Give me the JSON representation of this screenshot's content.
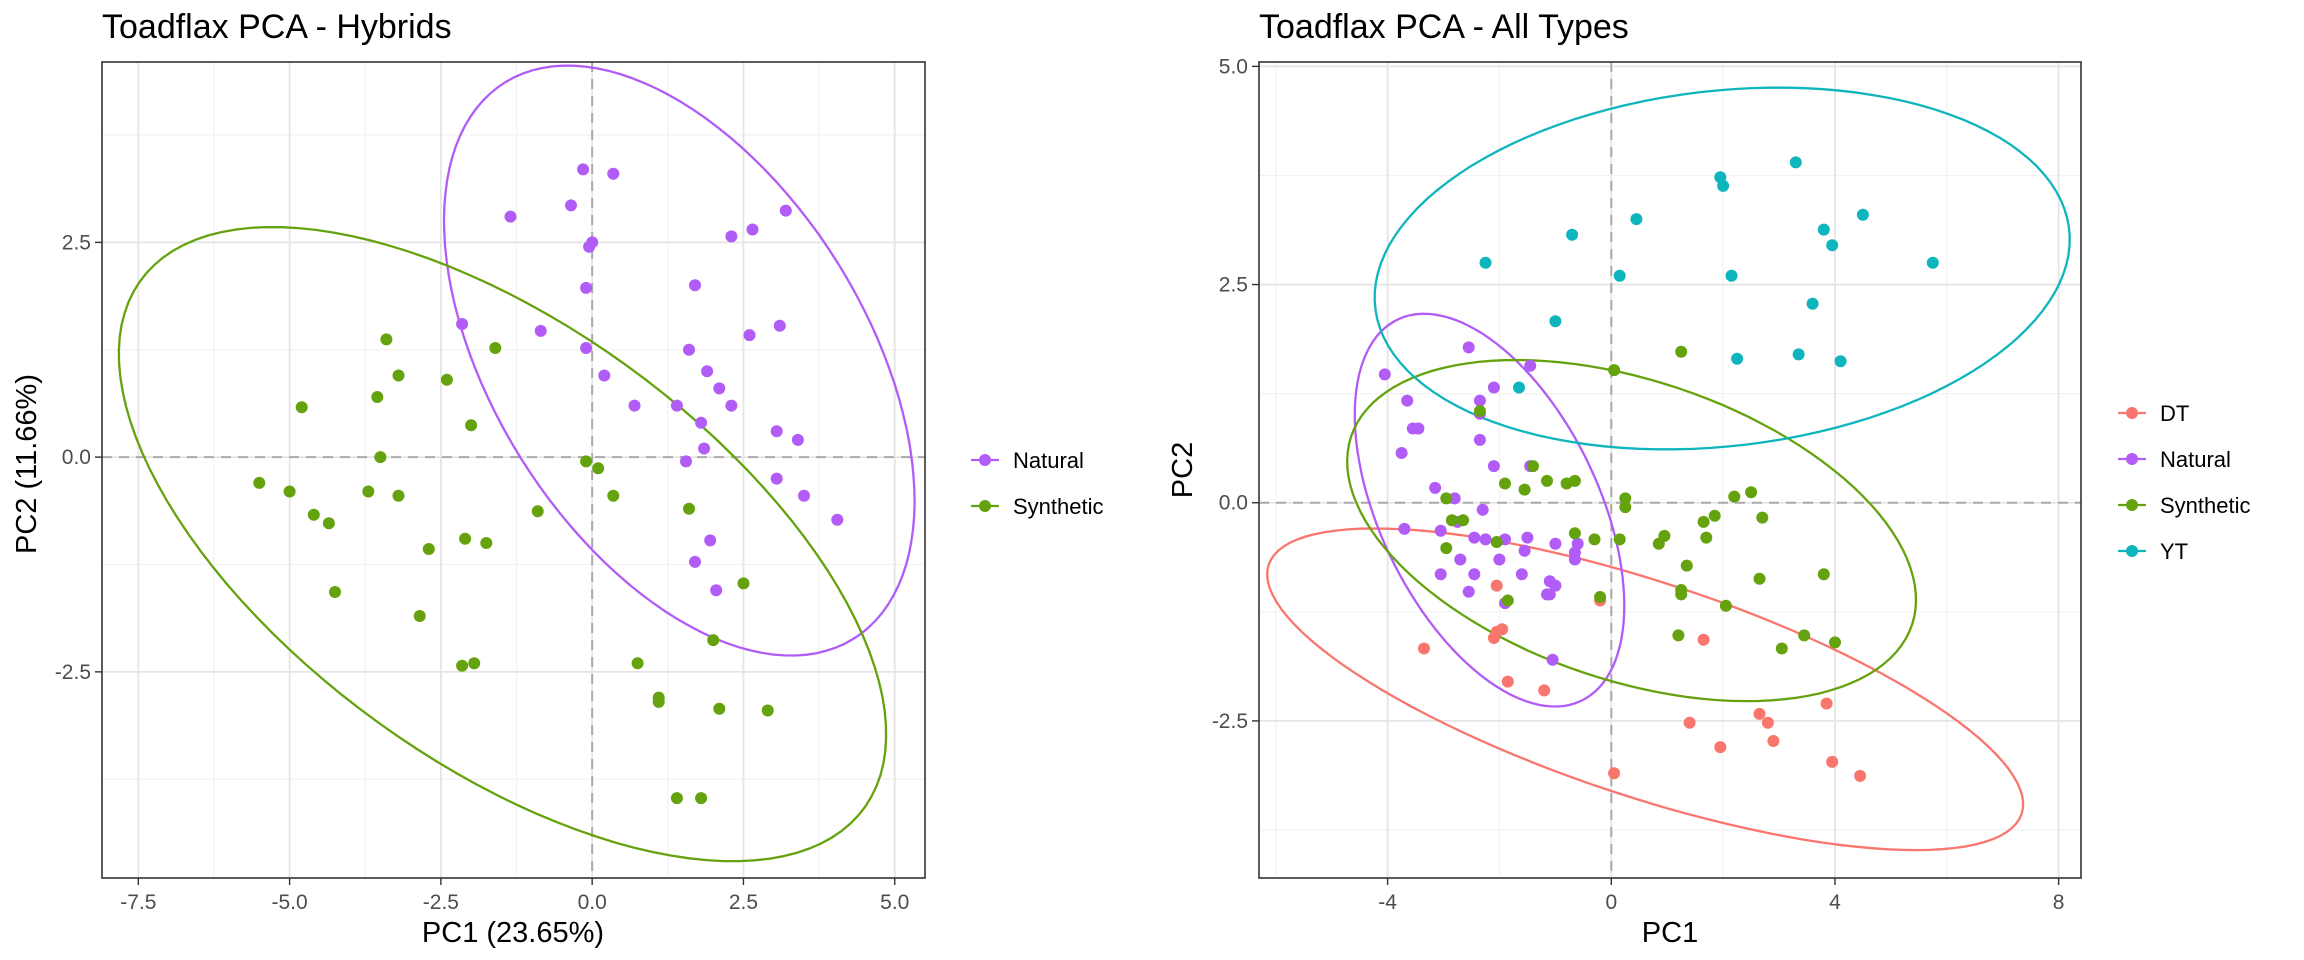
{
  "colors": {
    "DT": "#F8766D",
    "Natural": "#B15CF7",
    "Synthetic": "#64A20E",
    "YT": "#0FB5BC",
    "grid_major": "#E5E5E5",
    "grid_minor": "#F2F2F2",
    "panel_border": "#333333",
    "zero_line": "#AAAAAA"
  },
  "chart_data": [
    {
      "type": "scatter",
      "title": "Toadflax PCA - Hybrids",
      "xlabel": "PC1 (23.65%)",
      "ylabel": "PC2 (11.66%)",
      "xlim": [
        -8.1,
        5.5
      ],
      "ylim": [
        -4.9,
        4.6
      ],
      "xticks": [
        -7.5,
        -5.0,
        -2.5,
        0.0,
        2.5,
        5.0
      ],
      "xtick_labels": [
        "-7.5",
        "-5.0",
        "-2.5",
        "0.0",
        "2.5",
        "5.0"
      ],
      "yticks": [
        -2.5,
        0.0,
        2.5
      ],
      "ytick_labels": [
        "-2.5",
        "0.0",
        "2.5"
      ],
      "grid": true,
      "reference_lines": {
        "x": 0,
        "y": 0
      },
      "legend_position": "right",
      "legend": [
        "Natural",
        "Synthetic"
      ],
      "series": [
        {
          "name": "Natural",
          "ellipse": true,
          "points": [
            [
              -0.15,
              3.35
            ],
            [
              0.35,
              3.3
            ],
            [
              -0.35,
              2.93
            ],
            [
              3.2,
              2.87
            ],
            [
              -1.35,
              2.8
            ],
            [
              0,
              2.5
            ],
            [
              -0.05,
              2.45
            ],
            [
              2.65,
              2.65
            ],
            [
              2.3,
              2.57
            ],
            [
              -0.1,
              1.97
            ],
            [
              1.7,
              2.0
            ],
            [
              3.1,
              1.53
            ],
            [
              -2.15,
              1.55
            ],
            [
              -0.85,
              1.47
            ],
            [
              2.6,
              1.42
            ],
            [
              1.6,
              1.25
            ],
            [
              -0.1,
              1.27
            ],
            [
              1.9,
              1.0
            ],
            [
              0.2,
              0.95
            ],
            [
              2.1,
              0.8
            ],
            [
              0.7,
              0.6
            ],
            [
              1.4,
              0.6
            ],
            [
              2.3,
              0.6
            ],
            [
              1.8,
              0.4
            ],
            [
              3.05,
              0.3
            ],
            [
              3.4,
              0.2
            ],
            [
              1.85,
              0.1
            ],
            [
              1.55,
              -0.05
            ],
            [
              3.05,
              -0.25
            ],
            [
              3.5,
              -0.45
            ],
            [
              4.05,
              -0.73
            ],
            [
              1.95,
              -0.97
            ],
            [
              1.7,
              -1.22
            ],
            [
              2.05,
              -1.55
            ]
          ]
        },
        {
          "name": "Synthetic",
          "ellipse": true,
          "points": [
            [
              -3.4,
              1.37
            ],
            [
              -3.2,
              0.95
            ],
            [
              -2.4,
              0.9
            ],
            [
              -3.55,
              0.7
            ],
            [
              -1.6,
              1.27
            ],
            [
              -4.8,
              0.58
            ],
            [
              -2.0,
              0.37
            ],
            [
              -3.5,
              0.0
            ],
            [
              -0.1,
              -0.05
            ],
            [
              0.1,
              -0.13
            ],
            [
              -5.5,
              -0.3
            ],
            [
              -5.0,
              -0.4
            ],
            [
              -3.7,
              -0.4
            ],
            [
              -3.2,
              -0.45
            ],
            [
              0.35,
              -0.45
            ],
            [
              1.6,
              -0.6
            ],
            [
              -4.6,
              -0.67
            ],
            [
              -0.9,
              -0.63
            ],
            [
              -4.35,
              -0.77
            ],
            [
              -2.1,
              -0.95
            ],
            [
              -1.75,
              -1.0
            ],
            [
              -2.7,
              -1.07
            ],
            [
              2.5,
              -1.47
            ],
            [
              -4.25,
              -1.57
            ],
            [
              -2.85,
              -1.85
            ],
            [
              2.0,
              -2.13
            ],
            [
              0.75,
              -2.4
            ],
            [
              -1.95,
              -2.4
            ],
            [
              -2.15,
              -2.43
            ],
            [
              1.1,
              -2.8
            ],
            [
              1.1,
              -2.85
            ],
            [
              2.1,
              -2.93
            ],
            [
              2.9,
              -2.95
            ],
            [
              1.4,
              -3.97
            ],
            [
              1.8,
              -3.97
            ]
          ]
        }
      ]
    },
    {
      "type": "scatter",
      "title": "Toadflax PCA - All Types",
      "xlabel": "PC1",
      "ylabel": "PC2",
      "xlim": [
        -6.3,
        8.4
      ],
      "ylim": [
        -4.3,
        5.05
      ],
      "xticks": [
        -4,
        0,
        4,
        8
      ],
      "xtick_labels": [
        "-4",
        "0",
        "4",
        "8"
      ],
      "yticks": [
        -2.5,
        0.0,
        2.5,
        5.0
      ],
      "ytick_labels": [
        "-2.5",
        "0.0",
        "2.5",
        "5.0"
      ],
      "grid": true,
      "reference_lines": {
        "x": 0,
        "y": 0
      },
      "legend_position": "right",
      "legend": [
        "DT",
        "Natural",
        "Synthetic",
        "YT"
      ],
      "series": [
        {
          "name": "DT",
          "ellipse": true,
          "points": [
            [
              -2.05,
              -0.95
            ],
            [
              -0.2,
              -1.12
            ],
            [
              -2.05,
              -1.48
            ],
            [
              -1.95,
              -1.45
            ],
            [
              -2.1,
              -1.55
            ],
            [
              1.65,
              -1.57
            ],
            [
              -3.35,
              -1.67
            ],
            [
              -1.85,
              -2.05
            ],
            [
              -1.2,
              -2.15
            ],
            [
              3.85,
              -2.3
            ],
            [
              2.65,
              -2.42
            ],
            [
              1.4,
              -2.52
            ],
            [
              2.8,
              -2.52
            ],
            [
              2.9,
              -2.73
            ],
            [
              1.95,
              -2.8
            ],
            [
              3.95,
              -2.97
            ],
            [
              4.45,
              -3.13
            ],
            [
              0.05,
              -3.1
            ]
          ]
        },
        {
          "name": "Natural",
          "ellipse": true,
          "points": [
            [
              -4.05,
              1.47
            ],
            [
              -2.55,
              1.78
            ],
            [
              -1.45,
              1.57
            ],
            [
              -2.1,
              1.32
            ],
            [
              -3.65,
              1.17
            ],
            [
              -3.45,
              0.85
            ],
            [
              -3.55,
              0.85
            ],
            [
              -2.35,
              1.17
            ],
            [
              -2.35,
              1.02
            ],
            [
              -3.75,
              0.57
            ],
            [
              -2.35,
              0.72
            ],
            [
              -2.1,
              0.42
            ],
            [
              -1.45,
              0.42
            ],
            [
              -3.15,
              0.17
            ],
            [
              -2.8,
              0.05
            ],
            [
              -2.3,
              -0.08
            ],
            [
              -3.7,
              -0.3
            ],
            [
              -2.75,
              -0.22
            ],
            [
              -3.05,
              -0.32
            ],
            [
              -2.45,
              -0.4
            ],
            [
              -1.9,
              -0.42
            ],
            [
              -2.25,
              -0.42
            ],
            [
              -1.0,
              -0.47
            ],
            [
              -1.5,
              -0.4
            ],
            [
              -0.6,
              -0.47
            ],
            [
              -1.55,
              -0.55
            ],
            [
              -2.7,
              -0.65
            ],
            [
              -2.0,
              -0.65
            ],
            [
              -0.65,
              -0.57
            ],
            [
              -0.65,
              -0.65
            ],
            [
              -2.45,
              -0.82
            ],
            [
              -1.6,
              -0.82
            ],
            [
              -3.05,
              -0.82
            ],
            [
              -2.55,
              -1.02
            ],
            [
              -1.15,
              -1.05
            ],
            [
              -1.1,
              -0.9
            ],
            [
              -1.0,
              -0.95
            ],
            [
              -1.1,
              -1.05
            ],
            [
              -1.9,
              -1.15
            ],
            [
              -1.05,
              -1.8
            ]
          ]
        },
        {
          "name": "Synthetic",
          "ellipse": true,
          "points": [
            [
              1.25,
              1.73
            ],
            [
              0.05,
              1.52
            ],
            [
              -2.35,
              1.05
            ],
            [
              -1.4,
              0.42
            ],
            [
              -1.15,
              0.25
            ],
            [
              0.25,
              0.05
            ],
            [
              0.25,
              -0.05
            ],
            [
              -1.9,
              0.22
            ],
            [
              -0.8,
              0.22
            ],
            [
              -0.65,
              0.25
            ],
            [
              -2.95,
              0.05
            ],
            [
              -1.55,
              0.15
            ],
            [
              2.5,
              0.12
            ],
            [
              2.2,
              0.07
            ],
            [
              -2.85,
              -0.2
            ],
            [
              1.85,
              -0.15
            ],
            [
              2.7,
              -0.17
            ],
            [
              1.65,
              -0.22
            ],
            [
              -2.65,
              -0.2
            ],
            [
              -0.65,
              -0.35
            ],
            [
              -0.3,
              -0.42
            ],
            [
              0.15,
              -0.42
            ],
            [
              0.95,
              -0.38
            ],
            [
              0.85,
              -0.47
            ],
            [
              1.7,
              -0.4
            ],
            [
              1.35,
              -0.72
            ],
            [
              -2.95,
              -0.52
            ],
            [
              1.25,
              -1.0
            ],
            [
              1.25,
              -1.05
            ],
            [
              2.65,
              -0.87
            ],
            [
              3.8,
              -0.82
            ],
            [
              2.05,
              -1.18
            ],
            [
              1.2,
              -1.52
            ],
            [
              3.45,
              -1.52
            ],
            [
              3.05,
              -1.67
            ],
            [
              4.0,
              -1.6
            ],
            [
              -2.05,
              -0.45
            ],
            [
              -1.85,
              -1.12
            ],
            [
              -0.2,
              -1.08
            ]
          ]
        },
        {
          "name": "YT",
          "ellipse": true,
          "points": [
            [
              3.3,
              3.9
            ],
            [
              1.95,
              3.73
            ],
            [
              2.0,
              3.63
            ],
            [
              4.5,
              3.3
            ],
            [
              0.45,
              3.25
            ],
            [
              3.8,
              3.13
            ],
            [
              -0.7,
              3.07
            ],
            [
              3.95,
              2.95
            ],
            [
              -2.25,
              2.75
            ],
            [
              5.75,
              2.75
            ],
            [
              0.15,
              2.6
            ],
            [
              2.15,
              2.6
            ],
            [
              3.6,
              2.28
            ],
            [
              -1.0,
              2.08
            ],
            [
              2.25,
              1.65
            ],
            [
              3.35,
              1.7
            ],
            [
              4.1,
              1.62
            ],
            [
              -1.65,
              1.32
            ]
          ]
        }
      ]
    }
  ]
}
